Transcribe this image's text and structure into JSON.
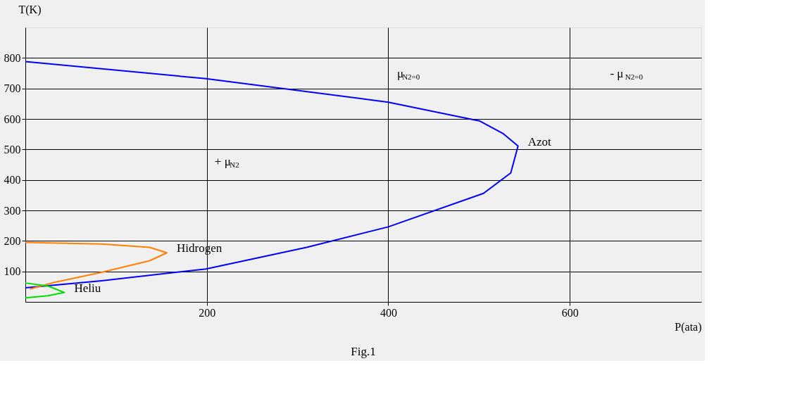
{
  "chart_data": {
    "type": "line",
    "xlabel": "P(ata)",
    "ylabel": "T(K)",
    "xlim": [
      0,
      745
    ],
    "ylim": [
      0,
      900
    ],
    "xticks": [
      200,
      400,
      600
    ],
    "yticks": [
      100,
      200,
      300,
      400,
      500,
      600,
      700,
      800
    ],
    "grid": true,
    "marker": "none",
    "line_style": "solid",
    "series": [
      {
        "name": "Azot",
        "color": "#0000ff",
        "x": [
          0,
          199,
          400,
          501,
          527,
          543,
          535,
          505,
          400,
          310,
          199,
          84,
          0
        ],
        "values": [
          788,
          732,
          655,
          593,
          551,
          511,
          423,
          356,
          246,
          179,
          108,
          69,
          46
        ]
      },
      {
        "name": "Hidrogen",
        "color": "#ff8000",
        "x": [
          0,
          84,
          137,
          156,
          137,
          84,
          32,
          5
        ],
        "values": [
          195,
          190,
          179,
          161,
          135,
          97,
          64,
          42
        ]
      },
      {
        "name": "Heliu",
        "color": "#00dd00",
        "x": [
          0,
          25,
          43,
          25,
          0
        ],
        "values": [
          62,
          52,
          31,
          20,
          13
        ]
      }
    ],
    "annotations": [
      "μ$_{N2=0}$",
      "- μ$_{N2=0}$",
      "+ μ$_{N2}$",
      "Fig.1"
    ]
  }
}
